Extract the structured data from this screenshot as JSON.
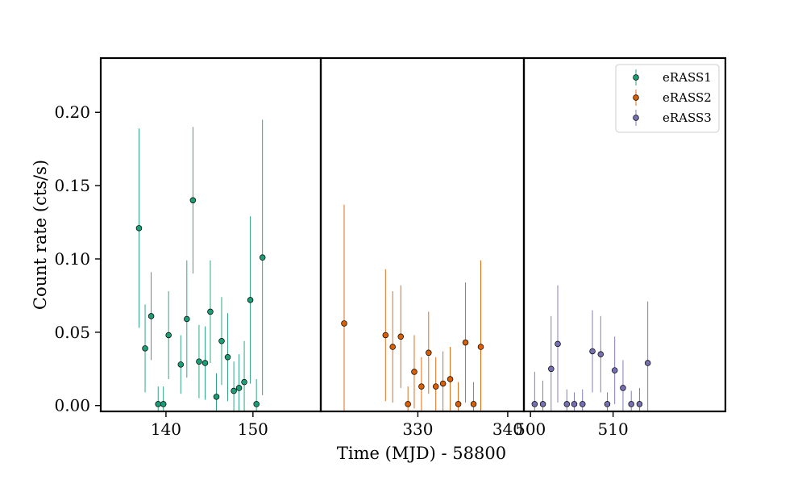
{
  "chart_data": {
    "type": "scatter",
    "title": "",
    "xlabel": "Time (MJD) - 58800",
    "ylabel": "Count rate (cts/s)",
    "ylim": [
      -0.004,
      0.237
    ],
    "yticks": [
      0.0,
      0.05,
      0.1,
      0.15,
      0.2
    ],
    "ytick_labels": [
      "0.00",
      "0.05",
      "0.10",
      "0.15",
      "0.20"
    ],
    "grid": false,
    "legend_position": "top-right",
    "panels": [
      {
        "xlim": [
          132.5,
          157.8
        ],
        "xticks": [
          140,
          150
        ],
        "xtick_labels": [
          "140",
          "150"
        ]
      },
      {
        "xlim": [
          319.2,
          341.8
        ],
        "xticks": [
          330,
          340
        ],
        "xtick_labels": [
          "330",
          "340"
        ]
      },
      {
        "xlim": [
          499.2,
          523.6
        ],
        "xticks": [
          500,
          510
        ],
        "xtick_labels": [
          "500",
          "510"
        ]
      }
    ],
    "series": [
      {
        "name": "eRASS1",
        "color": "#1b9e77",
        "panel": 0,
        "x": [
          136.9,
          137.6,
          138.3,
          139.1,
          139.7,
          140.3,
          141.7,
          142.4,
          143.1,
          143.8,
          144.5,
          145.1,
          145.8,
          146.4,
          147.1,
          147.8,
          148.4,
          149.0,
          149.7,
          150.4,
          151.1
        ],
        "y": [
          0.121,
          0.039,
          0.061,
          0.001,
          0.001,
          0.048,
          0.028,
          0.059,
          0.14,
          0.03,
          0.029,
          0.064,
          0.006,
          0.044,
          0.033,
          0.01,
          0.012,
          0.016,
          0.072,
          0.001,
          0.101
        ],
        "yerr": [
          0.068,
          0.03,
          0.03,
          0.012,
          0.012,
          0.03,
          0.02,
          0.04,
          0.05,
          0.025,
          0.025,
          0.035,
          0.016,
          0.03,
          0.03,
          0.02,
          0.023,
          0.028,
          0.057,
          0.017,
          0.094
        ]
      },
      {
        "name": "eRASS2",
        "color": "#d95f02",
        "panel": 1,
        "x": [
          321.8,
          326.4,
          327.2,
          328.1,
          328.9,
          329.6,
          330.4,
          331.2,
          332.0,
          332.8,
          333.6,
          334.5,
          335.3,
          336.2,
          337.0
        ],
        "y": [
          0.056,
          0.048,
          0.04,
          0.047,
          0.001,
          0.023,
          0.013,
          0.036,
          0.013,
          0.015,
          0.018,
          0.001,
          0.043,
          0.001,
          0.04
        ],
        "yerr": [
          0.081,
          0.045,
          0.038,
          0.035,
          0.012,
          0.025,
          0.02,
          0.028,
          0.02,
          0.022,
          0.022,
          0.015,
          0.041,
          0.015,
          0.059
        ]
      },
      {
        "name": "eRASS3",
        "color": "#7570b3",
        "panel": 2,
        "x": [
          500.5,
          501.5,
          502.5,
          503.3,
          504.4,
          505.3,
          506.3,
          507.5,
          508.5,
          509.3,
          510.2,
          511.2,
          512.2,
          513.2,
          514.2
        ],
        "y": [
          0.001,
          0.001,
          0.025,
          0.042,
          0.001,
          0.001,
          0.001,
          0.037,
          0.035,
          0.001,
          0.024,
          0.012,
          0.001,
          0.001,
          0.029
        ],
        "yerr": [
          0.022,
          0.016,
          0.036,
          0.04,
          0.01,
          0.008,
          0.01,
          0.028,
          0.026,
          0.008,
          0.023,
          0.019,
          0.009,
          0.011,
          0.042
        ]
      }
    ]
  }
}
